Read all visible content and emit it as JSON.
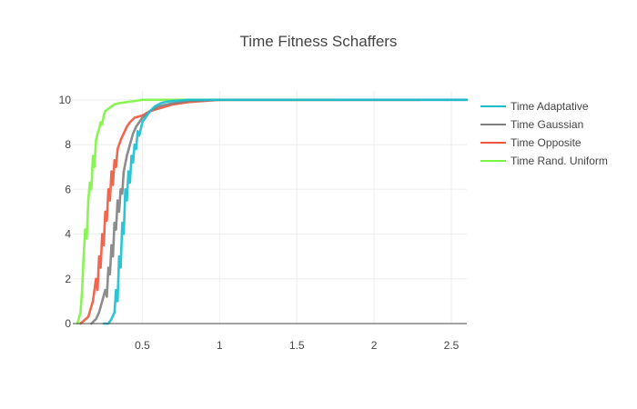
{
  "chart_data": {
    "type": "line",
    "title": "Time Fitness Schaffers",
    "xlabel": "",
    "ylabel": "",
    "xlim": [
      0.05,
      2.6
    ],
    "ylim": [
      0,
      10.4
    ],
    "x_ticks": [
      0.5,
      1,
      1.5,
      2,
      2.5
    ],
    "x_tick_labels": [
      "0.5",
      "1",
      "1.5",
      "2",
      "2.5"
    ],
    "y_ticks": [
      0,
      2,
      4,
      6,
      8,
      10
    ],
    "y_tick_labels": [
      "0",
      "2",
      "4",
      "6",
      "8",
      "10"
    ],
    "grid": true,
    "legend_position": "right",
    "series": [
      {
        "name": "Time Adaptative",
        "color": "#17becf",
        "x": [
          0.25,
          0.28,
          0.3,
          0.32,
          0.33,
          0.34,
          0.35,
          0.36,
          0.37,
          0.38,
          0.39,
          0.4,
          0.41,
          0.42,
          0.43,
          0.44,
          0.45,
          0.46,
          0.47,
          0.48,
          0.5,
          0.52,
          0.55,
          0.58,
          0.62,
          0.66,
          0.7,
          0.8,
          1.0,
          1.5,
          2.0,
          2.6
        ],
        "y": [
          0,
          0,
          0.2,
          0.5,
          1.5,
          1.0,
          3.0,
          2.5,
          4.5,
          4.0,
          6.0,
          5.5,
          6.8,
          6.3,
          7.5,
          7.2,
          8.0,
          7.8,
          8.6,
          8.4,
          9.0,
          9.2,
          9.5,
          9.7,
          9.85,
          9.92,
          9.95,
          10,
          10,
          10,
          10,
          10
        ]
      },
      {
        "name": "Time Gaussian",
        "color": "#7f7f7f",
        "x": [
          0.17,
          0.2,
          0.22,
          0.24,
          0.26,
          0.27,
          0.28,
          0.29,
          0.3,
          0.31,
          0.32,
          0.33,
          0.34,
          0.35,
          0.36,
          0.37,
          0.38,
          0.4,
          0.42,
          0.44,
          0.46,
          0.48,
          0.5,
          0.55,
          0.6,
          0.7,
          0.8,
          1.0,
          1.5,
          2.0,
          2.6
        ],
        "y": [
          0,
          0.2,
          0.5,
          1.0,
          1.5,
          1.2,
          2.5,
          2.2,
          3.5,
          3.0,
          4.5,
          4.2,
          5.5,
          5.0,
          6.0,
          5.8,
          6.8,
          7.5,
          8.0,
          8.5,
          8.8,
          9.0,
          9.2,
          9.5,
          9.7,
          9.85,
          9.95,
          10,
          10,
          10,
          10
        ]
      },
      {
        "name": "Time Opposite",
        "color": "#ef553b",
        "x": [
          0.1,
          0.15,
          0.18,
          0.2,
          0.21,
          0.22,
          0.23,
          0.24,
          0.25,
          0.26,
          0.27,
          0.28,
          0.29,
          0.3,
          0.31,
          0.32,
          0.33,
          0.34,
          0.36,
          0.38,
          0.4,
          0.42,
          0.45,
          0.5,
          0.55,
          0.6,
          0.7,
          0.8,
          0.9,
          1.0,
          1.2,
          1.5,
          2.0,
          2.3
        ],
        "y": [
          0,
          0.3,
          1.0,
          2.0,
          1.5,
          3.0,
          2.5,
          4.0,
          3.5,
          5.0,
          4.6,
          6.0,
          5.5,
          6.8,
          6.2,
          7.3,
          7.0,
          7.8,
          8.2,
          8.5,
          8.8,
          9.0,
          9.2,
          9.3,
          9.5,
          9.6,
          9.8,
          9.9,
          9.95,
          10,
          10,
          10,
          10,
          10
        ]
      },
      {
        "name": "Time Rand. Uniform",
        "color": "#7cf443",
        "x": [
          0.08,
          0.1,
          0.11,
          0.12,
          0.13,
          0.14,
          0.15,
          0.16,
          0.17,
          0.18,
          0.19,
          0.2,
          0.21,
          0.22,
          0.23,
          0.24,
          0.25,
          0.26,
          0.28,
          0.3,
          0.32,
          0.35,
          0.4,
          0.45,
          0.5,
          0.6,
          0.7,
          0.8,
          1.0,
          1.2,
          1.5,
          1.78
        ],
        "y": [
          0,
          0.5,
          1.5,
          3.0,
          4.2,
          3.8,
          5.5,
          6.3,
          6.0,
          7.5,
          7.0,
          8.2,
          8.5,
          8.7,
          9.0,
          8.9,
          9.3,
          9.5,
          9.6,
          9.7,
          9.8,
          9.85,
          9.9,
          9.95,
          10,
          10,
          10,
          10,
          10,
          10,
          10,
          10
        ]
      }
    ]
  }
}
